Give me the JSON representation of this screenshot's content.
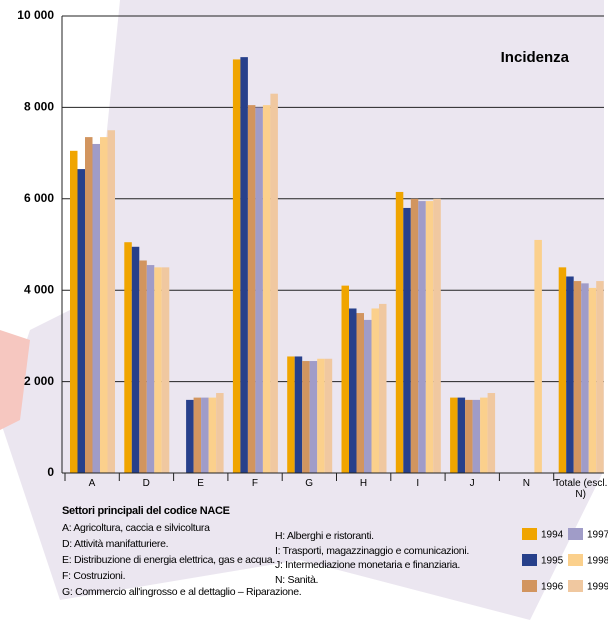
{
  "chart_data": {
    "type": "bar",
    "annotation": "Incidenza",
    "categories": [
      "A",
      "D",
      "E",
      "F",
      "G",
      "H",
      "I",
      "J",
      "N",
      "Totale (escl. N)"
    ],
    "series": [
      {
        "name": "1994",
        "color": "#f0a500",
        "values": [
          7050,
          5050,
          null,
          9050,
          2550,
          4100,
          6150,
          1650,
          null,
          4500
        ]
      },
      {
        "name": "1995",
        "color": "#27408b",
        "values": [
          6650,
          4950,
          1600,
          9100,
          2550,
          3600,
          5800,
          1650,
          null,
          4300
        ]
      },
      {
        "name": "1996",
        "color": "#d2955f",
        "values": [
          7350,
          4650,
          1650,
          8050,
          2450,
          3500,
          6000,
          1600,
          null,
          4200
        ]
      },
      {
        "name": "1997",
        "color": "#a09cc8",
        "values": [
          7200,
          4550,
          1650,
          8000,
          2450,
          3350,
          5950,
          1600,
          null,
          4150
        ]
      },
      {
        "name": "1998",
        "color": "#fbd08c",
        "values": [
          7350,
          4500,
          1650,
          8050,
          2500,
          3600,
          5950,
          1650,
          5100,
          4050
        ]
      },
      {
        "name": "1999",
        "color": "#f0c8a0",
        "values": [
          7500,
          4500,
          1750,
          8300,
          2500,
          3700,
          6000,
          1750,
          null,
          4200
        ]
      }
    ],
    "ylim": [
      0,
      10000
    ],
    "yticks": [
      0,
      {
        "value": 2000,
        "label": "2 000"
      },
      {
        "value": 4000,
        "label": "4 000"
      },
      {
        "value": 6000,
        "label": "6 000"
      },
      {
        "value": 8000,
        "label": "8 000"
      },
      {
        "value": 10000,
        "label": "10 000"
      }
    ],
    "grid": true
  },
  "notes": {
    "title": "Settori principali del codice NACE",
    "items": [
      "A: Agricoltura, caccia e silvicoltura",
      "D: Attività manifatturiere.",
      "E: Distribuzione di energia elettrica, gas e acqua.",
      "F: Costruzioni.",
      "G: Commercio all'ingrosso e al dettaglio – Riparazione.",
      "H: Alberghi e ristoranti.",
      "I: Trasporti, magazzinaggio e comunicazioni.",
      "J: Intermediazione monetaria e finanziaria.",
      "N: Sanità."
    ]
  }
}
